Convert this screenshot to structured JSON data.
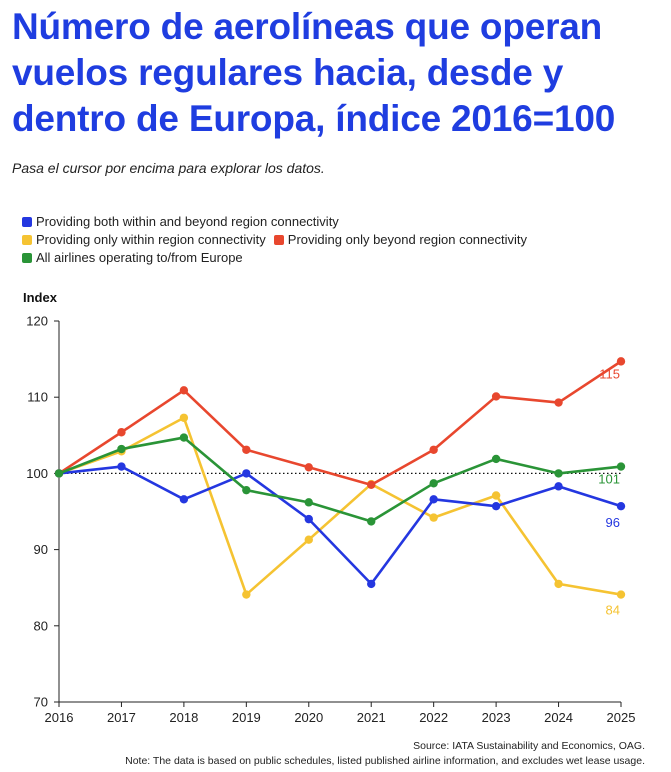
{
  "title": "Número de aerolíneas que operan vuelos regulares hacia, desde y dentro de Europa, índice 2016=100",
  "subtitle": "Pasa el cursor por encima para explorar los datos.",
  "source_line": "Source: IATA Sustainability and Economics, OAG.",
  "note_line": "Note: The data is based on public schedules, listed published airline information, and excludes wet lease usage.",
  "chart_data": {
    "type": "line",
    "title": "Número de aerolíneas que operan vuelos regulares hacia, desde y dentro de Europa, índice 2016=100",
    "ylabel": "Index",
    "xlabel": "",
    "ylim": [
      70,
      120
    ],
    "yticks": [
      "70",
      "80",
      "90",
      "100",
      "110",
      "120"
    ],
    "x": [
      "2016",
      "2017",
      "2018",
      "2019",
      "2020",
      "2021",
      "2022",
      "2023",
      "2024",
      "2025"
    ],
    "reference_line": 100,
    "series": [
      {
        "name": "Providing both within and beyond region connectivity",
        "color": "#2437e0",
        "values": [
          100,
          100.9,
          96.6,
          100,
          94,
          85.5,
          96.6,
          95.7,
          98.3,
          95.7
        ],
        "end_label": "96"
      },
      {
        "name": "Providing only within region connectivity",
        "color": "#f5c332",
        "values": [
          100,
          102.9,
          107.3,
          84.1,
          91.3,
          98.6,
          94.2,
          97.1,
          85.5,
          84.1
        ],
        "end_label": "84"
      },
      {
        "name": "Providing only beyond region connectivity",
        "color": "#e8472e",
        "values": [
          100,
          105.4,
          110.9,
          103.1,
          100.8,
          98.5,
          103.1,
          110.1,
          109.3,
          114.7
        ],
        "end_label": "115"
      },
      {
        "name": "All airlines operating to/from Europe",
        "color": "#2a9437",
        "values": [
          100,
          103.2,
          104.7,
          97.8,
          96.2,
          93.7,
          98.7,
          101.9,
          100,
          100.9
        ],
        "end_label": "101"
      }
    ]
  }
}
